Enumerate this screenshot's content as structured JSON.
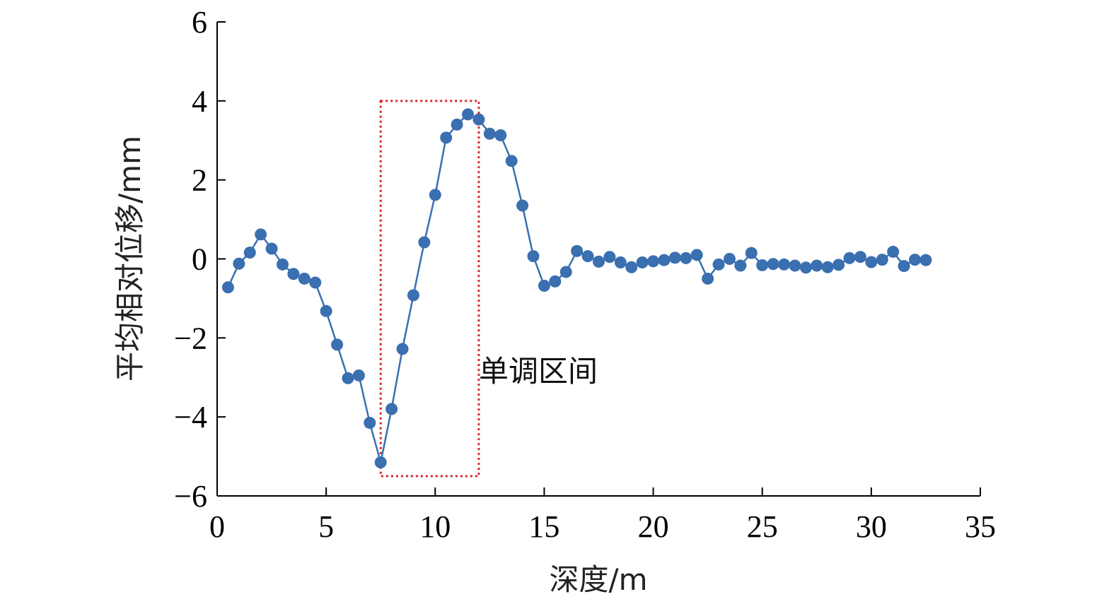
{
  "chart_data": {
    "type": "line",
    "xlabel": "深度/m",
    "ylabel": "平均相对位移/mm",
    "xlim": [
      0,
      35
    ],
    "ylim": [
      -6,
      6
    ],
    "xticks": [
      0,
      5,
      10,
      15,
      20,
      25,
      30,
      35
    ],
    "yticks": [
      -6,
      -4,
      -2,
      0,
      2,
      4,
      6
    ],
    "yticklabels": [
      "−6",
      "−4",
      "−2",
      "0",
      "2",
      "4",
      "6"
    ],
    "grid": false,
    "colors": {
      "series": "#3a6fb0",
      "highlight": "#d9262c"
    },
    "series": [
      {
        "x": [
          0.5,
          1.0,
          1.5,
          2.0,
          2.5,
          3.0,
          3.5,
          4.0,
          4.5,
          5.0,
          5.5,
          6.0,
          6.5,
          7.0,
          7.5,
          8.0,
          8.5,
          9.0,
          9.5,
          10.0,
          10.5,
          11.0,
          11.5,
          12.0,
          12.5,
          13.0,
          13.5,
          14.0,
          14.5,
          15.0,
          15.5,
          16.0,
          16.5,
          17.0,
          17.5,
          18.0,
          18.5,
          19.0,
          19.5,
          20.0,
          20.5,
          21.0,
          21.5,
          22.0,
          22.5,
          23.0,
          23.5,
          24.0,
          24.5,
          25.0,
          25.5,
          26.0,
          26.5,
          27.0,
          27.5,
          28.0,
          28.5,
          29.0,
          29.5,
          30.0,
          30.5,
          31.0,
          31.5,
          32.0,
          32.5
        ],
        "y": [
          -0.72,
          -0.12,
          0.16,
          0.62,
          0.26,
          -0.14,
          -0.38,
          -0.5,
          -0.6,
          -1.32,
          -2.17,
          -3.02,
          -2.95,
          -4.15,
          -5.15,
          -3.8,
          -2.28,
          -0.92,
          0.42,
          1.62,
          3.07,
          3.4,
          3.66,
          3.53,
          3.17,
          3.13,
          2.48,
          1.35,
          0.07,
          -0.68,
          -0.57,
          -0.33,
          0.2,
          0.07,
          -0.07,
          0.05,
          -0.09,
          -0.21,
          -0.09,
          -0.06,
          -0.03,
          0.03,
          0.02,
          0.1,
          -0.5,
          -0.14,
          0.0,
          -0.17,
          0.15,
          -0.16,
          -0.13,
          -0.14,
          -0.17,
          -0.22,
          -0.17,
          -0.21,
          -0.15,
          0.02,
          0.05,
          -0.08,
          -0.02,
          0.18,
          -0.18,
          -0.02,
          -0.03
        ]
      }
    ],
    "annotations": [
      {
        "text": "单调区间",
        "x_range": [
          7.5,
          12
        ],
        "y_range": [
          -5.5,
          4
        ]
      }
    ]
  }
}
